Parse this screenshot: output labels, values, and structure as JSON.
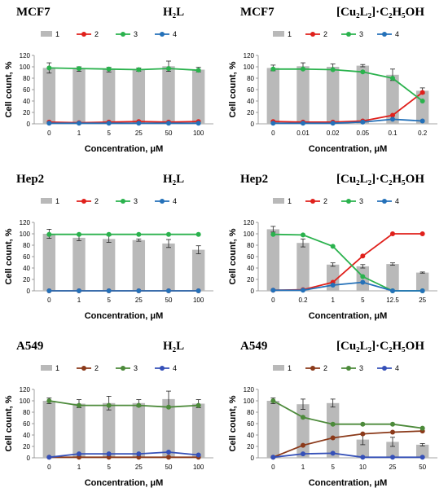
{
  "legend_labels": [
    "1",
    "2",
    "3",
    "4"
  ],
  "colors": {
    "series1_bar": "#b9b9b9",
    "mcf7_hep2": [
      "#b9b9b9",
      "#e0201b",
      "#2ab24d",
      "#2471b9"
    ],
    "a549": [
      "#b9b9b9",
      "#8b3a1a",
      "#4c8a3a",
      "#3550b8"
    ]
  },
  "chart_data": [
    {
      "type": "bar",
      "cell_line": "MCF7",
      "compound": "H₂L",
      "categories": [
        "0",
        "1",
        "5",
        "25",
        "50",
        "100"
      ],
      "xlabel": "Concentration, μM",
      "ylabel": "Cell count, %",
      "ylim": [
        0,
        120
      ],
      "yticks": [
        0,
        20,
        40,
        60,
        80,
        100,
        120
      ],
      "legend_placement": "top",
      "series": [
        {
          "name": "1",
          "kind": "bar",
          "values": [
            98,
            96,
            95,
            95,
            101,
            95
          ],
          "errors": [
            9,
            4,
            4,
            3,
            9,
            4
          ]
        },
        {
          "name": "2",
          "kind": "line",
          "values": [
            3,
            2,
            3,
            4,
            3,
            4
          ]
        },
        {
          "name": "3",
          "kind": "line",
          "values": [
            98,
            97,
            96,
            95,
            97,
            94
          ]
        },
        {
          "name": "4",
          "kind": "line",
          "values": [
            1,
            1,
            1,
            1,
            1,
            1
          ]
        }
      ]
    },
    {
      "type": "bar",
      "cell_line": "MCF7",
      "compound": "[Cu₂L₂]·C₂H₅OH",
      "categories": [
        "0",
        "0.01",
        "0.02",
        "0.05",
        "0.1",
        "0.2"
      ],
      "xlabel": "Concentration, μM",
      "ylabel": "Cell count, %",
      "ylim": [
        0,
        120
      ],
      "yticks": [
        0,
        20,
        40,
        60,
        80,
        100,
        120
      ],
      "legend_placement": "top",
      "series": [
        {
          "name": "1",
          "kind": "bar",
          "values": [
            98,
            101,
            100,
            102,
            86,
            58
          ],
          "errors": [
            5,
            6,
            5,
            2,
            10,
            5
          ]
        },
        {
          "name": "2",
          "kind": "line",
          "values": [
            4,
            3,
            3,
            5,
            15,
            55
          ]
        },
        {
          "name": "3",
          "kind": "line",
          "values": [
            96,
            96,
            95,
            91,
            80,
            40
          ]
        },
        {
          "name": "4",
          "kind": "line",
          "values": [
            1,
            1,
            1,
            3,
            8,
            5
          ]
        }
      ]
    },
    {
      "type": "bar",
      "cell_line": "Hep2",
      "compound": "H₂L",
      "categories": [
        "0",
        "1",
        "5",
        "25",
        "50",
        "100"
      ],
      "xlabel": "Concentration, μM",
      "ylabel": "Cell count, %",
      "ylim": [
        0,
        120
      ],
      "yticks": [
        0,
        20,
        40,
        60,
        80,
        100,
        120
      ],
      "legend_placement": "top",
      "series": [
        {
          "name": "1",
          "kind": "bar",
          "values": [
            100,
            93,
            91,
            89,
            83,
            72
          ],
          "errors": [
            8,
            5,
            6,
            2,
            7,
            7
          ]
        },
        {
          "name": "2",
          "kind": "line",
          "values": [
            0,
            0,
            0,
            0,
            0,
            0
          ]
        },
        {
          "name": "3",
          "kind": "line",
          "values": [
            99,
            99,
            99,
            99,
            99,
            99
          ]
        },
        {
          "name": "4",
          "kind": "line",
          "values": [
            0,
            0,
            0,
            0,
            0,
            0
          ]
        }
      ]
    },
    {
      "type": "bar",
      "cell_line": "Hep2",
      "compound": "[Cu₂L₂]·C₂H₅OH",
      "categories": [
        "0",
        "0.2",
        "1",
        "5",
        "12.5",
        "25"
      ],
      "xlabel": "Concentration, μM",
      "ylabel": "Cell count, %",
      "ylim": [
        0,
        120
      ],
      "yticks": [
        0,
        20,
        40,
        60,
        80,
        100,
        120
      ],
      "legend_placement": "top",
      "series": [
        {
          "name": "1",
          "kind": "bar",
          "values": [
            108,
            84,
            46,
            43,
            47,
            32
          ],
          "errors": [
            5,
            7,
            3,
            3,
            2,
            1
          ]
        },
        {
          "name": "2",
          "kind": "line",
          "values": [
            1,
            2,
            15,
            61,
            100,
            100
          ]
        },
        {
          "name": "3",
          "kind": "line",
          "values": [
            99,
            98,
            78,
            25,
            0,
            0
          ]
        },
        {
          "name": "4",
          "kind": "line",
          "values": [
            1,
            1,
            10,
            15,
            0,
            0
          ]
        }
      ]
    },
    {
      "type": "bar",
      "cell_line": "A549",
      "compound": "H₂L",
      "categories": [
        "0",
        "1",
        "5",
        "25",
        "50",
        "100"
      ],
      "xlabel": "Concentration, μM",
      "ylabel": "Cell count, %",
      "ylim": [
        0,
        120
      ],
      "yticks": [
        0,
        20,
        40,
        60,
        80,
        100,
        120
      ],
      "legend_placement": "top",
      "series": [
        {
          "name": "1",
          "kind": "bar",
          "values": [
            100,
            95,
            96,
            96,
            103,
            95
          ],
          "errors": [
            5,
            7,
            12,
            6,
            14,
            7
          ]
        },
        {
          "name": "2",
          "kind": "line",
          "values": [
            1,
            1,
            1,
            1,
            1,
            1
          ]
        },
        {
          "name": "3",
          "kind": "line",
          "values": [
            100,
            92,
            92,
            92,
            89,
            92
          ]
        },
        {
          "name": "4",
          "kind": "line",
          "values": [
            1,
            7,
            7,
            7,
            10,
            5
          ]
        }
      ]
    },
    {
      "type": "bar",
      "cell_line": "A549",
      "compound": "[Cu₂L₂]·C₂H₅OH",
      "categories": [
        "0",
        "1",
        "5",
        "10",
        "25",
        "50"
      ],
      "xlabel": "Concentration, μM",
      "ylabel": "Cell count, %",
      "ylim": [
        0,
        120
      ],
      "yticks": [
        0,
        20,
        40,
        60,
        80,
        100,
        120
      ],
      "legend_placement": "top",
      "series": [
        {
          "name": "1",
          "kind": "bar",
          "values": [
            100,
            94,
            96,
            32,
            28,
            23
          ],
          "errors": [
            5,
            9,
            7,
            9,
            8,
            2
          ]
        },
        {
          "name": "2",
          "kind": "line",
          "values": [
            1,
            22,
            35,
            42,
            45,
            47
          ]
        },
        {
          "name": "3",
          "kind": "line",
          "values": [
            100,
            71,
            59,
            59,
            59,
            52
          ]
        },
        {
          "name": "4",
          "kind": "line",
          "values": [
            1,
            7,
            8,
            1,
            1,
            1
          ]
        }
      ]
    }
  ]
}
